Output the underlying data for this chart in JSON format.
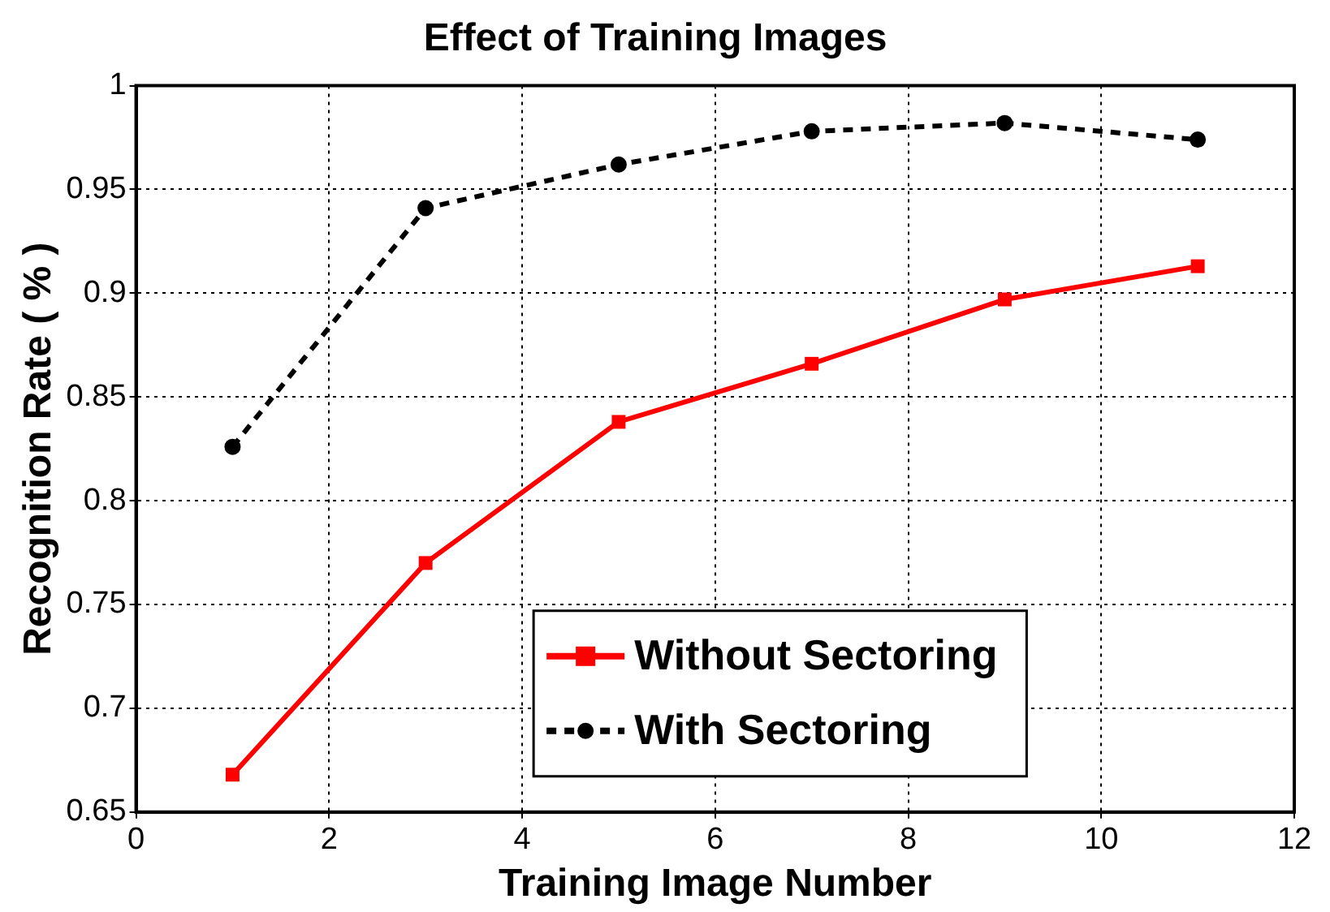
{
  "chart_data": {
    "type": "line",
    "title": "Effect of Training Images",
    "xlabel": "Training Image Number",
    "ylabel": "Recognition Rate ( % )",
    "x": [
      1,
      3,
      5,
      7,
      9,
      11
    ],
    "series": [
      {
        "name": "Without Sectoring",
        "color": "#ff0000",
        "marker": "square",
        "line_style": "solid",
        "values": [
          0.668,
          0.77,
          0.838,
          0.866,
          0.897,
          0.913
        ]
      },
      {
        "name": "With Sectoring",
        "color": "#000000",
        "marker": "circle",
        "line_style": "dashed",
        "values": [
          0.826,
          0.941,
          0.962,
          0.978,
          0.982,
          0.974
        ]
      }
    ],
    "xlim": [
      0,
      12
    ],
    "xticks": [
      0,
      2,
      4,
      6,
      8,
      10,
      12
    ],
    "ylim": [
      0.65,
      1
    ],
    "yticks": [
      0.65,
      0.7,
      0.75,
      0.8,
      0.85,
      0.9,
      0.95,
      1
    ],
    "grid": true,
    "legend": "bottom"
  }
}
